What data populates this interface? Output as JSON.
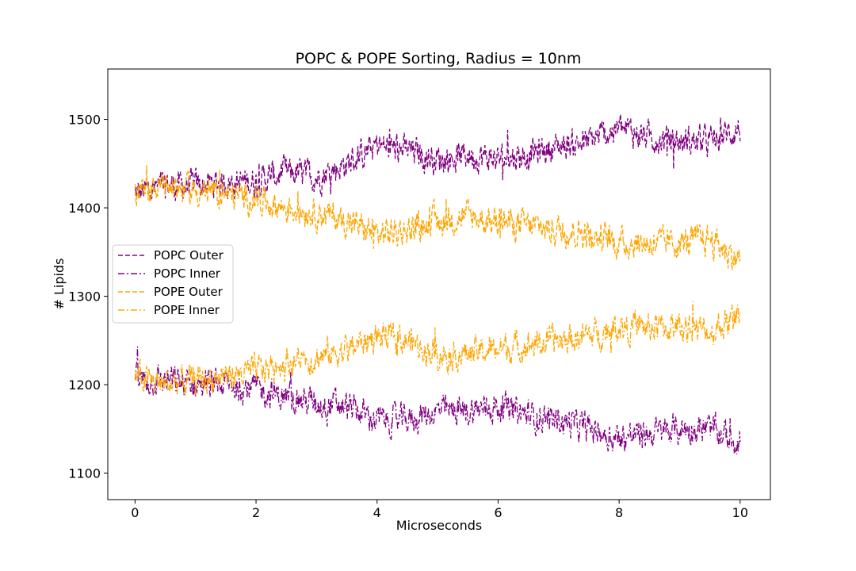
{
  "chart_data": {
    "type": "line",
    "title": "POPC & POPE Sorting, Radius = 10nm",
    "xlabel": "Microseconds",
    "ylabel": "# Lipids",
    "xlim": [
      -0.45,
      10.5
    ],
    "ylim": [
      1070,
      1557
    ],
    "xticks": [
      0,
      2,
      4,
      6,
      8,
      10
    ],
    "yticks": [
      1100,
      1200,
      1300,
      1400,
      1500
    ],
    "grid": false,
    "legend_position": "center-left",
    "series": [
      {
        "name": "POPC Outer",
        "color": "#800080",
        "dash": "dashed",
        "x": [
          0,
          0.5,
          1,
          1.5,
          2,
          2.5,
          3,
          3.5,
          4,
          4.5,
          5,
          5.5,
          6,
          6.5,
          7,
          7.5,
          8,
          8.5,
          9,
          9.5,
          10
        ],
        "y": [
          1415,
          1425,
          1425,
          1428,
          1430,
          1440,
          1435,
          1450,
          1470,
          1465,
          1455,
          1460,
          1455,
          1460,
          1470,
          1475,
          1490,
          1480,
          1475,
          1475,
          1490
        ]
      },
      {
        "name": "POPC Inner",
        "color": "#800080",
        "dash": "dashdot",
        "x": [
          0,
          0.5,
          1,
          1.5,
          2,
          2.5,
          3,
          3.5,
          4,
          4.5,
          5,
          5.5,
          6,
          6.5,
          7,
          7.5,
          8,
          8.5,
          9,
          9.5,
          10
        ],
        "y": [
          1205,
          1205,
          1200,
          1200,
          1195,
          1185,
          1180,
          1175,
          1160,
          1160,
          1170,
          1170,
          1175,
          1165,
          1160,
          1150,
          1140,
          1145,
          1150,
          1150,
          1135
        ]
      },
      {
        "name": "POPE Outer",
        "color": "#ffa500",
        "dash": "dashed",
        "x": [
          0,
          0.5,
          1,
          1.5,
          2,
          2.5,
          3,
          3.5,
          4,
          4.5,
          5,
          5.5,
          6,
          6.5,
          7,
          7.5,
          8,
          8.5,
          9,
          9.5,
          10
        ],
        "y": [
          1415,
          1425,
          1420,
          1415,
          1410,
          1400,
          1395,
          1385,
          1370,
          1375,
          1385,
          1390,
          1385,
          1380,
          1375,
          1370,
          1360,
          1360,
          1360,
          1365,
          1340
        ]
      },
      {
        "name": "POPE Inner",
        "color": "#ffa500",
        "dash": "dashdot",
        "x": [
          0,
          0.5,
          1,
          1.5,
          2,
          2.5,
          3,
          3.5,
          4,
          4.5,
          5,
          5.5,
          6,
          6.5,
          7,
          7.5,
          8,
          8.5,
          9,
          9.5,
          10
        ],
        "y": [
          1210,
          1200,
          1205,
          1210,
          1215,
          1225,
          1230,
          1240,
          1255,
          1250,
          1235,
          1235,
          1240,
          1245,
          1250,
          1255,
          1265,
          1265,
          1265,
          1260,
          1280
        ]
      }
    ]
  }
}
